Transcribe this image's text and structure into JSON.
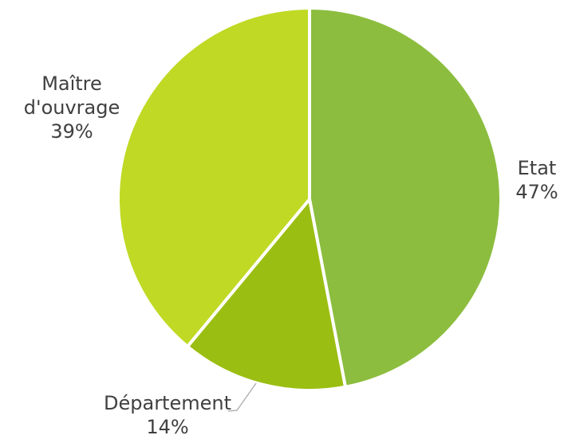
{
  "chart_data": {
    "type": "pie",
    "title": "",
    "slices": [
      {
        "label": "Etat",
        "value": 47,
        "value_label": "47%",
        "color": "#8CBD3F"
      },
      {
        "label": "Département",
        "value": 14,
        "value_label": "14%",
        "color": "#9BBE12"
      },
      {
        "label": "Maître d'ouvrage",
        "value": 39,
        "value_label": "39%",
        "color": "#C0D924"
      }
    ],
    "start_angle": "12 o'clock",
    "direction": "clockwise",
    "legend": "none",
    "slice_border_color": "#ffffff",
    "label_color": "#404040",
    "leader_line_color": "#A6A6A6"
  }
}
